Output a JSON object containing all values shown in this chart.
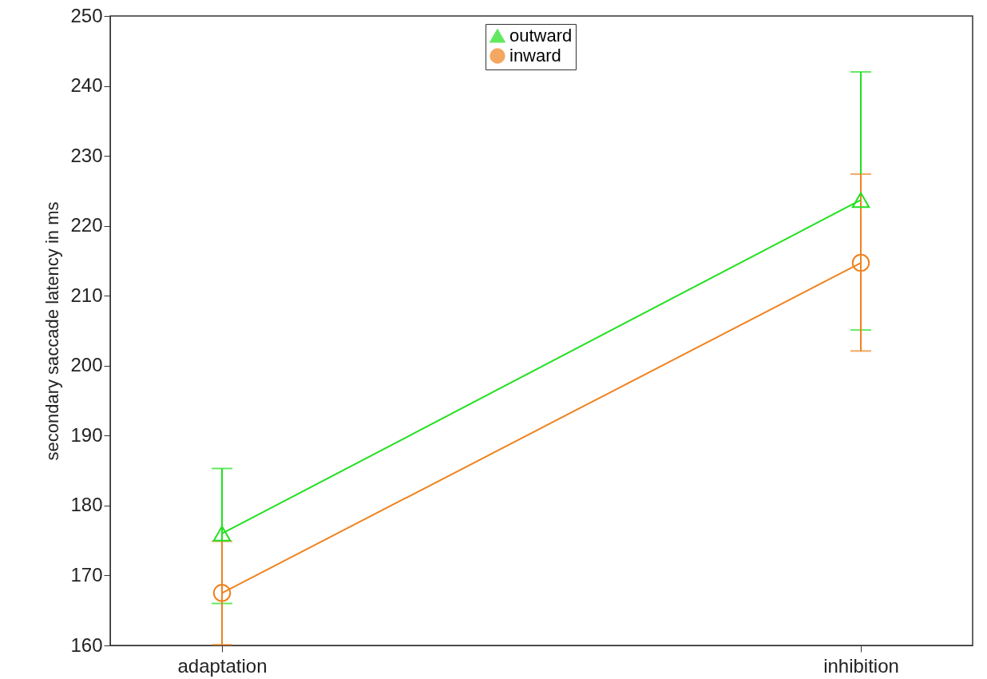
{
  "chart_data": {
    "type": "line",
    "ylabel": "secondary saccade latency in ms",
    "categories": [
      "adaptation",
      "inhibition"
    ],
    "series": [
      {
        "name": "outward",
        "color": "#22e01f",
        "marker": "triangle",
        "values": [
          176.0,
          223.7
        ],
        "errors": [
          [
            166.0,
            185.3
          ],
          [
            205.1,
            242.0
          ]
        ]
      },
      {
        "name": "inward",
        "color": "#f0821e",
        "marker": "circle",
        "values": [
          167.5,
          214.7
        ],
        "errors": [
          [
            160.1,
            174.9
          ],
          [
            202.1,
            227.4
          ]
        ]
      }
    ],
    "ylim": [
      160,
      250
    ],
    "yticks": [
      160,
      170,
      180,
      190,
      200,
      210,
      220,
      230,
      240,
      250
    ],
    "legend": "top",
    "grid": false
  }
}
